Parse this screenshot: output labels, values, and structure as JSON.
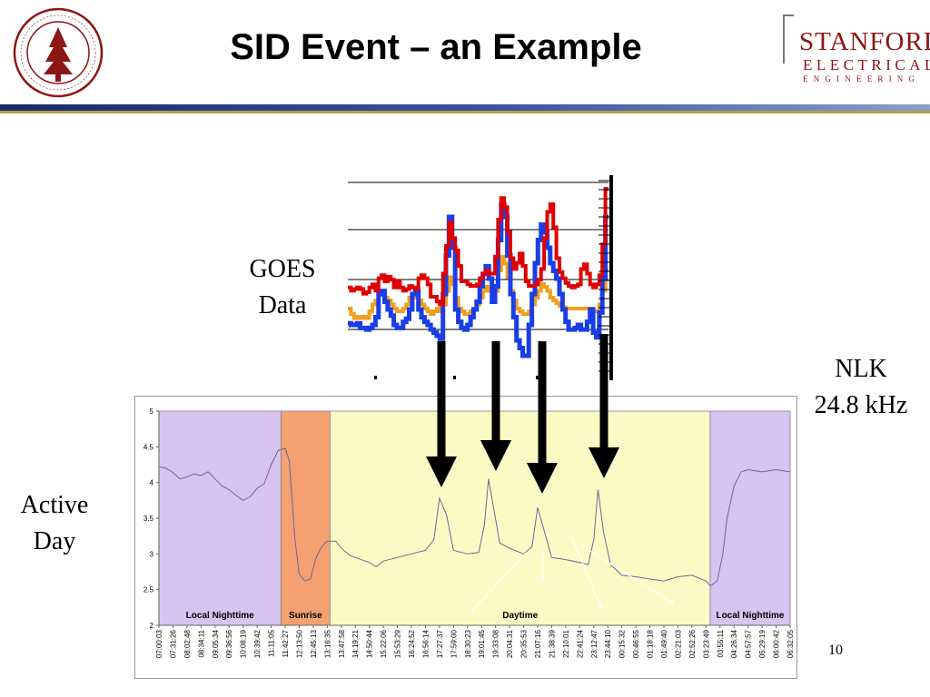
{
  "slide": {
    "title": "SID Event – an Example",
    "goes_label": [
      "GOES",
      "Data"
    ],
    "nlk_label": [
      "NLK",
      "24.8 kHz"
    ],
    "active_label": [
      "Active",
      "Day"
    ],
    "page_number": "10"
  },
  "branding": {
    "seal_icon": "stanford-seal-icon",
    "seal_color": "#8c1515",
    "wordmark_line1": "STANFORD",
    "wordmark_line2": "ELECTRICAL",
    "wordmark_line3": "ENGINEERING",
    "wordmark_color": "#8c1515"
  },
  "chart_data": [
    {
      "type": "line",
      "colors": {
        "red": "#e00000",
        "blue": "#1a3de8",
        "orange": "#f0a020"
      },
      "red_values": [
        0.36,
        0.34,
        0.35,
        0.36,
        0.35,
        0.32,
        0.33,
        0.36,
        0.38,
        0.34,
        0.42,
        0.44,
        0.4,
        0.43,
        0.41,
        0.36,
        0.4,
        0.36,
        0.34,
        0.35,
        0.37,
        0.36,
        0.35,
        0.42,
        0.44,
        0.42,
        0.38,
        0.3,
        0.3,
        0.27,
        0.25,
        0.45,
        0.63,
        0.78,
        0.68,
        0.6,
        0.5,
        0.4,
        0.4,
        0.38,
        0.37,
        0.37,
        0.38,
        0.42,
        0.45,
        0.47,
        0.45,
        0.45,
        0.56,
        0.8,
        0.94,
        0.88,
        0.72,
        0.55,
        0.48,
        0.52,
        0.58,
        0.5,
        0.4,
        0.37,
        0.37,
        0.38,
        0.41,
        0.48,
        0.68,
        0.85,
        0.9,
        0.75,
        0.55,
        0.46,
        0.42,
        0.39,
        0.37,
        0.36,
        0.37,
        0.38,
        0.48,
        0.51,
        0.45,
        0.38,
        0.36,
        0.38,
        0.44,
        0.64,
        1.0
      ],
      "blue_values": [
        0.01,
        0.0,
        0.0,
        0.01,
        -0.02,
        -0.02,
        -0.03,
        -0.02,
        0.0,
        0.05,
        0.2,
        0.22,
        0.15,
        0.1,
        0.06,
        0.0,
        -0.02,
        -0.02,
        0.02,
        0.04,
        0.1,
        0.2,
        0.22,
        0.1,
        0.05,
        0.02,
        0.0,
        -0.03,
        -0.05,
        -0.07,
        -0.09,
        0.2,
        0.45,
        0.7,
        0.5,
        0.1,
        0.02,
        -0.02,
        -0.03,
        0.0,
        0.05,
        0.1,
        0.15,
        0.25,
        0.33,
        0.38,
        0.3,
        0.15,
        0.25,
        0.55,
        0.78,
        0.7,
        0.45,
        0.2,
        0.05,
        -0.1,
        -0.15,
        -0.2,
        -0.2,
        0.0,
        0.2,
        0.4,
        0.55,
        0.65,
        0.6,
        0.5,
        0.4,
        0.35,
        0.3,
        0.2,
        0.1,
        0.02,
        -0.03,
        -0.03,
        -0.02,
        0.0,
        -0.03,
        -0.03,
        0.02,
        0.1,
        -0.05,
        -0.08,
        0.08,
        0.3,
        0.7
      ],
      "orange_values": [
        0.12,
        0.08,
        0.05,
        0.06,
        0.05,
        0.06,
        0.05,
        0.1,
        0.15,
        0.18,
        0.22,
        0.24,
        0.2,
        0.18,
        0.15,
        0.12,
        0.1,
        0.1,
        0.12,
        0.15,
        0.2,
        0.22,
        0.2,
        0.18,
        0.15,
        0.12,
        0.1,
        0.08,
        0.1,
        0.12,
        0.1,
        0.15,
        0.25,
        0.35,
        0.3,
        0.2,
        0.12,
        0.1,
        0.08,
        0.08,
        0.1,
        0.12,
        0.15,
        0.2,
        0.25,
        0.28,
        0.25,
        0.2,
        0.25,
        0.4,
        0.5,
        0.45,
        0.35,
        0.25,
        0.18,
        0.12,
        0.1,
        0.08,
        0.08,
        0.1,
        0.15,
        0.2,
        0.25,
        0.3,
        0.28,
        0.25,
        0.2,
        0.18,
        0.16,
        0.14,
        0.13,
        0.12,
        0.12,
        0.12,
        0.12,
        0.12,
        0.12,
        0.12,
        0.12,
        0.12,
        0.1,
        0.1,
        0.15,
        0.25,
        0.4
      ]
    },
    {
      "type": "line",
      "ylim": [
        2,
        5
      ],
      "yticks": [
        "5",
        "4.5",
        "4",
        "3.5",
        "3",
        "2.5",
        "2"
      ],
      "x_ticks": [
        "07:00:03",
        "07:31:26",
        "08:02:48",
        "08:34:11",
        "09:05:34",
        "09:36:56",
        "10:08:19",
        "10:39:42",
        "11:11:05",
        "11:42:27",
        "12:13:50",
        "12:45:13",
        "13:16:35",
        "13:47:58",
        "14:19:21",
        "14:50:44",
        "15:22:06",
        "15:53:29",
        "16:24:52",
        "16:56:14",
        "17:27:37",
        "17:59:00",
        "18:30:23",
        "19:01:45",
        "19:33:08",
        "20:04:31",
        "20:35:53",
        "21:07:16",
        "21:38:39",
        "22:10:01",
        "22:41:24",
        "23:12:47",
        "23:44:10",
        "00:15:32",
        "00:46:55",
        "01:18:18",
        "01:49:40",
        "02:21:03",
        "02:52:26",
        "03:23:49",
        "03:55:11",
        "04:26:34",
        "04:57:57",
        "05:29:19",
        "06:00:42",
        "06:32:05"
      ],
      "regions": [
        {
          "label": "Local Nighttime",
          "start": 0,
          "end": 8.7,
          "color": "#d8c4f0"
        },
        {
          "label": "Sunrise",
          "start": 8.7,
          "end": 12.2,
          "color": "#f4a070"
        },
        {
          "label": "Daytime",
          "start": 12.2,
          "end": 39.3,
          "color": "#fafac4"
        },
        {
          "label": "Local Nighttime",
          "start": 39.3,
          "end": 45,
          "color": "#d8c4f0"
        }
      ],
      "series": [
        {
          "color": "#6a6a9a",
          "points": [
            [
              0,
              4.22
            ],
            [
              0.5,
              4.2
            ],
            [
              1,
              4.14
            ],
            [
              1.5,
              4.05
            ],
            [
              2,
              4.08
            ],
            [
              2.5,
              4.12
            ],
            [
              3,
              4.1
            ],
            [
              3.5,
              4.15
            ],
            [
              4,
              4.05
            ],
            [
              4.5,
              3.95
            ],
            [
              5,
              3.9
            ],
            [
              5.5,
              3.82
            ],
            [
              6,
              3.75
            ],
            [
              6.5,
              3.8
            ],
            [
              7,
              3.92
            ],
            [
              7.5,
              3.98
            ],
            [
              8,
              4.25
            ],
            [
              8.5,
              4.45
            ],
            [
              9,
              4.48
            ],
            [
              9.3,
              4.3
            ],
            [
              9.7,
              3.2
            ],
            [
              10,
              2.72
            ],
            [
              10.4,
              2.62
            ],
            [
              10.8,
              2.65
            ],
            [
              11.2,
              2.95
            ],
            [
              11.6,
              3.1
            ],
            [
              12,
              3.18
            ],
            [
              12.6,
              3.18
            ],
            [
              13,
              3.08
            ],
            [
              13.6,
              2.98
            ],
            [
              14,
              2.95
            ],
            [
              15,
              2.88
            ],
            [
              15.5,
              2.82
            ],
            [
              16,
              2.9
            ],
            [
              17,
              2.95
            ],
            [
              18,
              3.0
            ],
            [
              19,
              3.05
            ],
            [
              19.6,
              3.2
            ],
            [
              20,
              3.78
            ],
            [
              20.5,
              3.55
            ],
            [
              21,
              3.05
            ],
            [
              22,
              3.0
            ],
            [
              22.8,
              3.02
            ],
            [
              23.2,
              3.4
            ],
            [
              23.5,
              4.05
            ],
            [
              23.9,
              3.6
            ],
            [
              24.3,
              3.15
            ],
            [
              25,
              3.08
            ],
            [
              26,
              3.0
            ],
            [
              26.6,
              3.1
            ],
            [
              27,
              3.65
            ],
            [
              27.5,
              3.3
            ],
            [
              28,
              2.95
            ],
            [
              29,
              2.92
            ],
            [
              30,
              2.88
            ],
            [
              30.6,
              2.85
            ],
            [
              31,
              3.2
            ],
            [
              31.3,
              3.9
            ],
            [
              31.7,
              3.3
            ],
            [
              32.2,
              2.85
            ],
            [
              33,
              2.7
            ],
            [
              34,
              2.68
            ],
            [
              35,
              2.65
            ],
            [
              36,
              2.62
            ],
            [
              37,
              2.68
            ],
            [
              38,
              2.7
            ],
            [
              39,
              2.62
            ],
            [
              39.3,
              2.55
            ],
            [
              39.8,
              2.62
            ],
            [
              40.2,
              3.0
            ],
            [
              40.5,
              3.5
            ],
            [
              41,
              3.95
            ],
            [
              41.5,
              4.15
            ],
            [
              42,
              4.18
            ],
            [
              43,
              4.15
            ],
            [
              44,
              4.18
            ],
            [
              45,
              4.15
            ]
          ]
        }
      ]
    }
  ]
}
